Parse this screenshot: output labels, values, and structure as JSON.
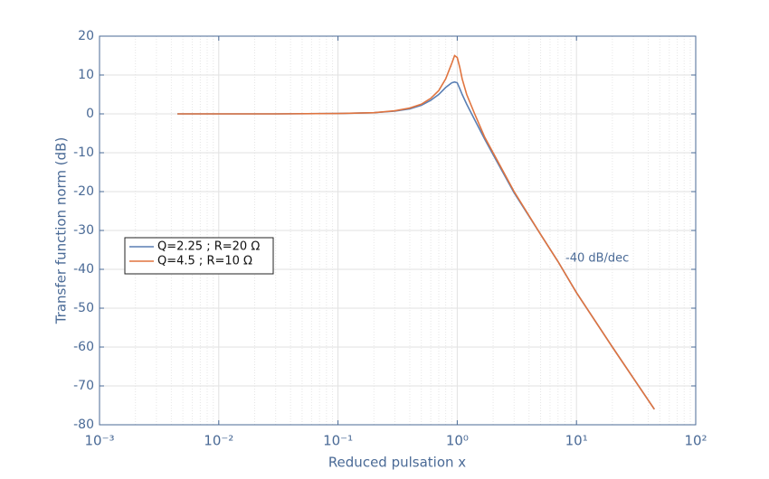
{
  "chart_data": {
    "type": "line",
    "xlabel": "Reduced pulsation x",
    "ylabel": "Transfer function norm (dB)",
    "annotation": "-40 dB/dec",
    "x": [
      0.0045,
      0.01,
      0.03,
      0.1,
      0.2,
      0.3,
      0.4,
      0.5,
      0.6,
      0.7,
      0.8,
      0.9,
      0.95,
      1,
      1.05,
      1.1,
      1.2,
      1.4,
      1.7,
      2,
      3,
      5,
      7,
      10,
      20,
      30,
      45
    ],
    "series": [
      {
        "name": "Q=2.25 ; R=20 Ω",
        "color": "#5a7fb4",
        "values": [
          0,
          0,
          0,
          0.1,
          0.3,
          0.7,
          1.3,
          2.2,
          3.5,
          5,
          6.8,
          8,
          8.2,
          8,
          6.5,
          5,
          2.5,
          -1.5,
          -6.5,
          -10.5,
          -20.3,
          -31,
          -38,
          -46,
          -60,
          -68,
          -76
        ]
      },
      {
        "name": "Q=4.5 ; R=10 Ω",
        "color": "#e0743f",
        "values": [
          0,
          0,
          0,
          0.1,
          0.3,
          0.8,
          1.5,
          2.5,
          4,
          6,
          9,
          13,
          15,
          14.5,
          12,
          9,
          5,
          0,
          -6,
          -10,
          -20,
          -31,
          -38,
          -46,
          -60,
          -68,
          -76
        ]
      }
    ],
    "xscale": "log",
    "xlim": [
      0.001,
      100
    ],
    "xticks": [
      {
        "value": 0.001,
        "label": "10⁻³"
      },
      {
        "value": 0.01,
        "label": "10⁻²"
      },
      {
        "value": 0.1,
        "label": "10⁻¹"
      },
      {
        "value": 1,
        "label": "10⁰"
      },
      {
        "value": 10,
        "label": "10¹"
      },
      {
        "value": 100,
        "label": "10²"
      }
    ],
    "ylim": [
      -80,
      20
    ],
    "yticks": [
      -80,
      -70,
      -60,
      -50,
      -40,
      -30,
      -20,
      -10,
      0,
      10,
      20
    ],
    "grid": true,
    "legend": "west"
  }
}
